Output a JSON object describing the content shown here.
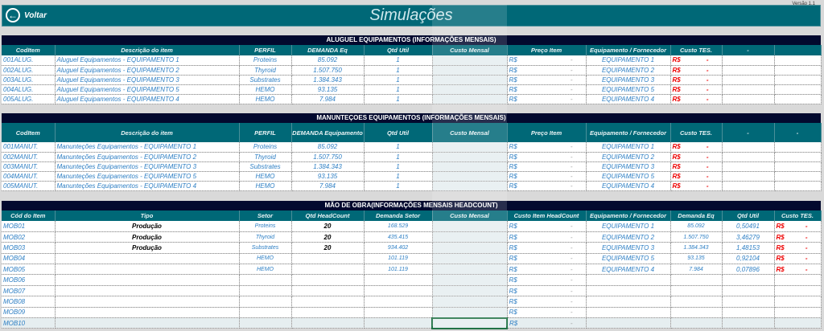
{
  "header": {
    "back_label": "Voltar",
    "title": "Simulações",
    "version": "Versão 1.1"
  },
  "aluguel": {
    "title": "ALUGUEL EQUIPAMENTOS (INFORMAÇÕES MENSAIS)",
    "columns": [
      "CodItem",
      "Descrição do item",
      "PERFIL",
      "DEMANDA Eq",
      "Qtd Util",
      "Custo Mensal",
      "Preço Item",
      "Equipamento / Fornecedor",
      "Custo TES.",
      "-",
      ""
    ],
    "rows": [
      [
        "001ALUG.",
        "Aluguel Equipamentos - EQUIPAMENTO 1",
        "Proteins",
        "85.092",
        "1",
        "EQUIPAMENTO 1"
      ],
      [
        "002ALUG.",
        "Aluguel Equipamentos - EQUIPAMENTO 2",
        "Thyroid",
        "1.507.750",
        "1",
        "EQUIPAMENTO 2"
      ],
      [
        "003ALUG.",
        "Aluguel Equipamentos - EQUIPAMENTO 3",
        "Substrates",
        "1.384.343",
        "1",
        "EQUIPAMENTO 3"
      ],
      [
        "004ALUG.",
        "Aluguel Equipamentos - EQUIPAMENTO 5",
        "HEMO",
        "93.135",
        "1",
        "EQUIPAMENTO 5"
      ],
      [
        "005ALUG.",
        "Aluguel Equipamentos - EQUIPAMENTO 4",
        "HEMO",
        "7.984",
        "1",
        "EQUIPAMENTO 4"
      ]
    ]
  },
  "manut": {
    "title": "MANUNTEÇOES EQUIPAMENTOS (INFORMAÇÕES MENSAIS)",
    "columns": [
      "CodItem",
      "Descrição do item",
      "PERFIL",
      "DEMANDA Equipamento",
      "Qtd Util",
      "Custo Mensal",
      "Preço Item",
      "Equipamento / Fornecedor",
      "Custo TES.",
      "-",
      "-"
    ],
    "rows": [
      [
        "001MANUT.",
        "Manunteções Equipamentos - EQUIPAMENTO 1",
        "Proteins",
        "85.092",
        "1",
        "EQUIPAMENTO 1"
      ],
      [
        "002MANUT.",
        "Manunteções Equipamentos - EQUIPAMENTO 2",
        "Thyroid",
        "1.507.750",
        "1",
        "EQUIPAMENTO 2"
      ],
      [
        "003MANUT.",
        "Manunteções Equipamentos - EQUIPAMENTO 3",
        "Substrates",
        "1.384.343",
        "1",
        "EQUIPAMENTO 3"
      ],
      [
        "004MANUT.",
        "Manunteções Equipamentos - EQUIPAMENTO 5",
        "HEMO",
        "93.135",
        "1",
        "EQUIPAMENTO 5"
      ],
      [
        "005MANUT.",
        "Manunteções Equipamentos - EQUIPAMENTO 4",
        "HEMO",
        "7.984",
        "1",
        "EQUIPAMENTO 4"
      ]
    ]
  },
  "mao": {
    "title": "MÃO DE OBRA(INFORMAÇÕES MENSAIS HEADCOUNT)",
    "columns": [
      "Cód do Item",
      "Tipo",
      "Setor",
      "Qtd HeadCount",
      "Demanda Setor",
      "Custo Mensal",
      "Custo Item HeadCount",
      "Equipamento / Fornecedor",
      "Demanda Eq",
      "Qtd Util",
      "Custo TES."
    ],
    "rows": [
      [
        "MOB01",
        "Produção",
        "Proteins",
        "20",
        "168.529",
        "EQUIPAMENTO 1",
        "85.092",
        "0,50491"
      ],
      [
        "MOB02",
        "Produção",
        "Thyroid",
        "20",
        "435.415",
        "EQUIPAMENTO 2",
        "1.507.750",
        "3,46279"
      ],
      [
        "MOB03",
        "Produção",
        "Substrates",
        "20",
        "934.402",
        "EQUIPAMENTO 3",
        "1.384.343",
        "1,48153"
      ],
      [
        "MOB04",
        "",
        "HEMO",
        "",
        "101.119",
        "EQUIPAMENTO 5",
        "93.135",
        "0,92104"
      ],
      [
        "MOB05",
        "",
        "HEMO",
        "",
        "101.119",
        "EQUIPAMENTO 4",
        "7.984",
        "0,07896"
      ],
      [
        "MOB06",
        "",
        "",
        "",
        "",
        "",
        "",
        ""
      ],
      [
        "MOB07",
        "",
        "",
        "",
        "",
        "",
        "",
        ""
      ],
      [
        "MOB08",
        "",
        "",
        "",
        "",
        "",
        "",
        ""
      ],
      [
        "MOB09",
        "",
        "",
        "",
        "",
        "",
        "",
        ""
      ],
      [
        "MOB10",
        "",
        "",
        "",
        "",
        "",
        "",
        ""
      ]
    ]
  },
  "currency": "R$",
  "dash": "-",
  "colors": {
    "header": "#006877",
    "section_title": "#02092e",
    "text_blue": "#2e7fc4",
    "red": "#e00000"
  }
}
